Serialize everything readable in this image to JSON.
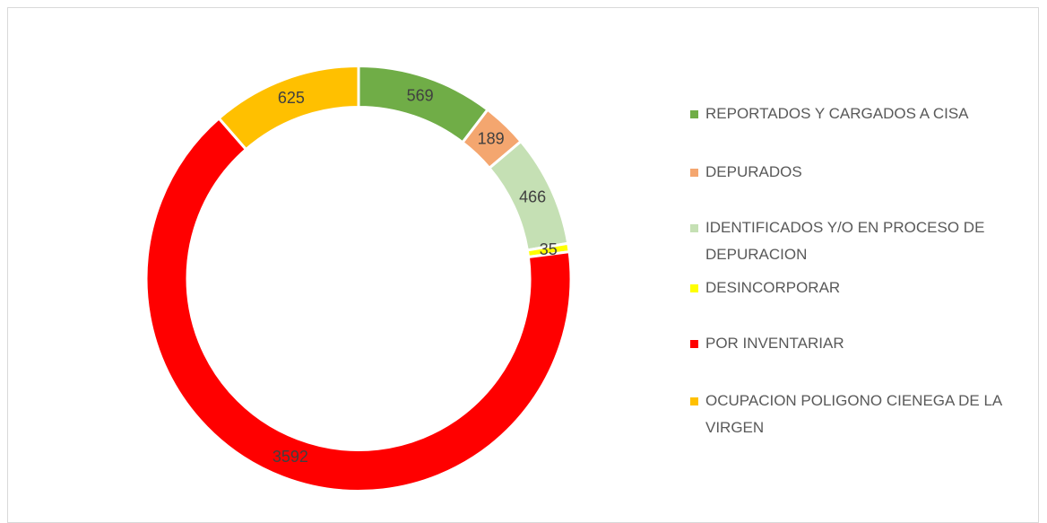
{
  "chart_data": {
    "type": "donut",
    "categories": [
      "REPORTADOS Y CARGADOS A CISA",
      "DEPURADOS",
      "IDENTIFICADOS Y/O EN PROCESO DE DEPURACION",
      "DESINCORPORAR",
      "POR INVENTARIAR",
      "OCUPACION POLIGONO CIENEGA DE LA VIRGEN"
    ],
    "values": [
      569,
      189,
      466,
      35,
      3592,
      625
    ],
    "colors": [
      "#70ad47",
      "#f4a66f",
      "#c5e0b4",
      "#ffff00",
      "#ff0000",
      "#ffc000"
    ],
    "legend": "right"
  }
}
